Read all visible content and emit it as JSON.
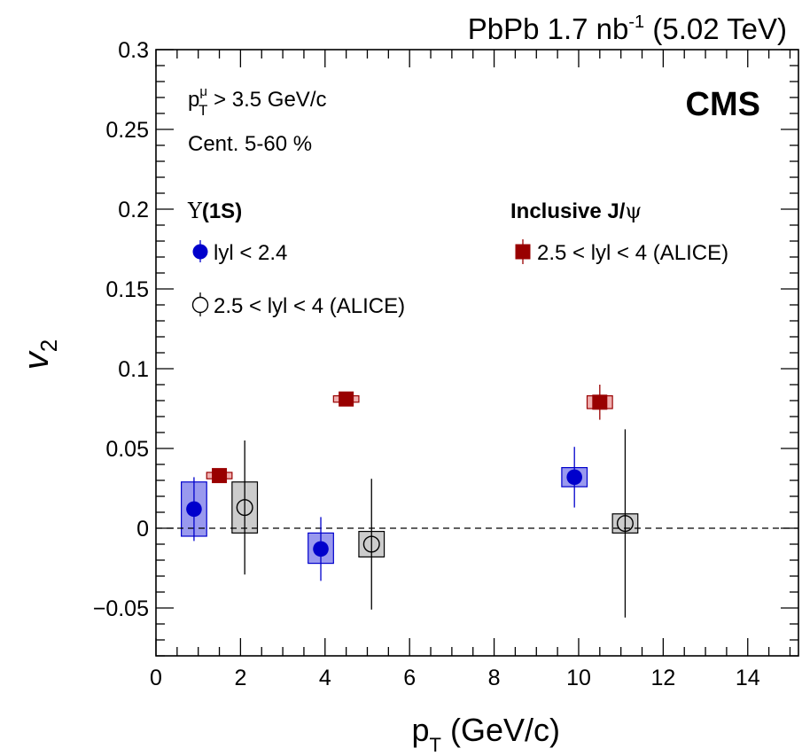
{
  "chart_data": {
    "type": "scatter",
    "top_label": {
      "main": "PbPb 1.7 nb",
      "sup": "-1",
      "rest": " (5.02 TeV)"
    },
    "experiment": "CMS",
    "xlabel": {
      "main": "p",
      "sub": "T",
      "rest": " (GeV/c)"
    },
    "ylabel": "v",
    "ylabel_sub": "2",
    "xlim": [
      0,
      15.2
    ],
    "ylim": [
      -0.08,
      0.3
    ],
    "xticks": [
      "0",
      "2",
      "4",
      "6",
      "8",
      "10",
      "12",
      "14"
    ],
    "yticks": [
      "−0.05",
      "0",
      "0.05",
      "0.1",
      "0.15",
      "0.2",
      "0.25",
      "0.3"
    ],
    "reference_line_y": 0,
    "cuts": {
      "pt_line": {
        "main": "p",
        "sub": "T",
        "sup": "μ",
        "rest": " > 3.5 GeV/c"
      },
      "cent": "Cent. 5-60 %"
    },
    "groups": {
      "upsilon": {
        "symbol": "Υ",
        "rest": "(1S)"
      },
      "jpsi": {
        "text": "Inclusive J/",
        "symbol": "ψ"
      }
    },
    "series": [
      {
        "name": "lyl < 2.4",
        "color": "#0000cc",
        "box_color": "#9999ee",
        "marker": "circle-filled",
        "points": [
          {
            "x": 0.9,
            "y": 0.012,
            "stat": 0.02,
            "syst_lo": -0.005,
            "syst_hi": 0.029,
            "syst_hw": 0.3
          },
          {
            "x": 3.9,
            "y": -0.013,
            "stat": 0.02,
            "syst_lo": -0.022,
            "syst_hi": -0.003,
            "syst_hw": 0.3
          },
          {
            "x": 9.9,
            "y": 0.032,
            "stat": 0.019,
            "syst_lo": 0.026,
            "syst_hi": 0.038,
            "syst_hw": 0.3
          }
        ]
      },
      {
        "name": "2.5 < lyl < 4 (ALICE)",
        "color": "#000000",
        "box_color": "#cccccc",
        "marker": "circle-open",
        "points": [
          {
            "x": 2.1,
            "y": 0.013,
            "stat": 0.042,
            "syst_lo": -0.003,
            "syst_hi": 0.029,
            "syst_hw": 0.3
          },
          {
            "x": 5.1,
            "y": -0.01,
            "stat": 0.041,
            "syst_lo": -0.018,
            "syst_hi": -0.002,
            "syst_hw": 0.3
          },
          {
            "x": 11.1,
            "y": 0.003,
            "stat": 0.059,
            "syst_lo": -0.003,
            "syst_hi": 0.009,
            "syst_hw": 0.3
          }
        ]
      },
      {
        "name": "2.5 < lyl < 4 (ALICE)",
        "color": "#990000",
        "box_color": "#f0b0b0",
        "marker": "square-filled",
        "points": [
          {
            "x": 1.5,
            "y": 0.033,
            "stat": 0.003,
            "syst_lo": 0.031,
            "syst_hi": 0.035,
            "syst_hw": 0.3
          },
          {
            "x": 4.5,
            "y": 0.081,
            "stat": 0.004,
            "syst_lo": 0.079,
            "syst_hi": 0.083,
            "syst_hw": 0.3
          },
          {
            "x": 10.5,
            "y": 0.079,
            "stat": 0.011,
            "syst_lo": 0.075,
            "syst_hi": 0.083,
            "syst_hw": 0.3
          }
        ]
      }
    ]
  }
}
